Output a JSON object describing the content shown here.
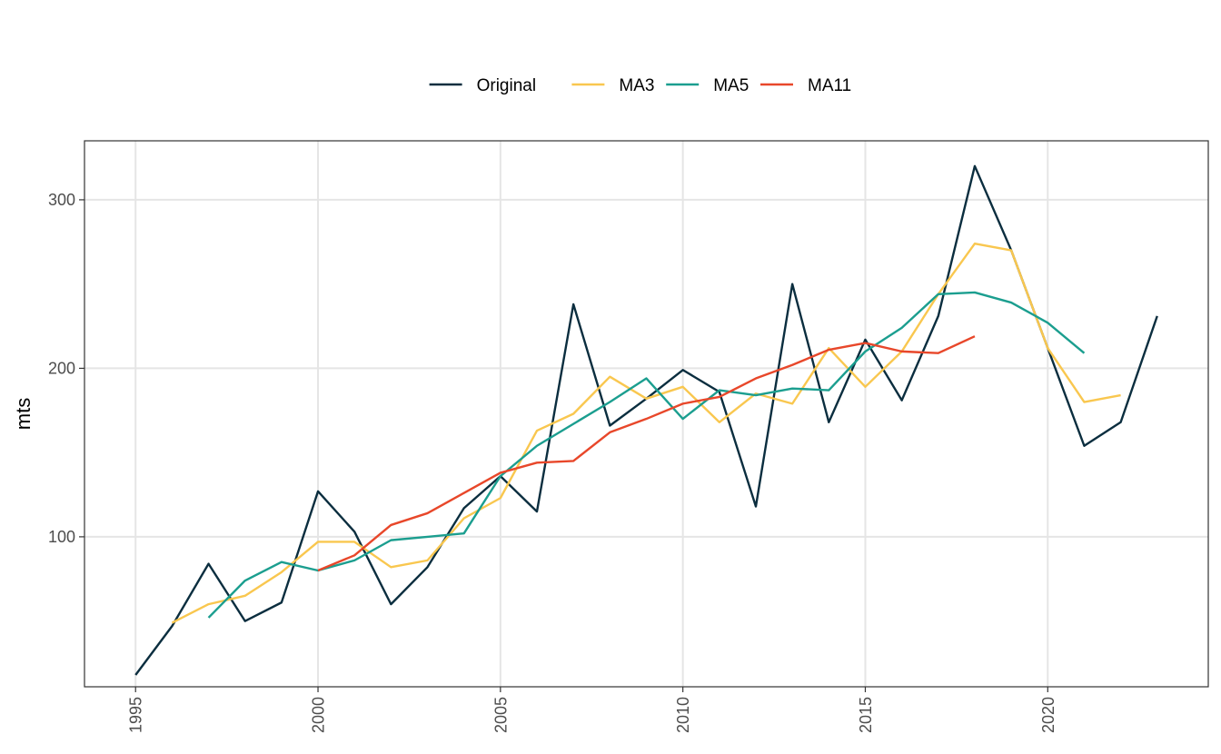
{
  "chart_data": {
    "type": "line",
    "xlabel": "",
    "ylabel": "mts",
    "xlim": [
      1993.6,
      2024.4
    ],
    "ylim": [
      11,
      335
    ],
    "x_ticks": [
      1995,
      2000,
      2005,
      2010,
      2015,
      2020
    ],
    "y_ticks": [
      100,
      200,
      300
    ],
    "grid": true,
    "legend_position": "top",
    "series": [
      {
        "name": "Original",
        "color": "#0b2e3f",
        "points": [
          [
            1995,
            18
          ],
          [
            1996,
            47
          ],
          [
            1997,
            84
          ],
          [
            1998,
            50
          ],
          [
            1999,
            61
          ],
          [
            2000,
            127
          ],
          [
            2001,
            103
          ],
          [
            2002,
            60
          ],
          [
            2003,
            82
          ],
          [
            2004,
            117
          ],
          [
            2005,
            136
          ],
          [
            2006,
            115
          ],
          [
            2007,
            238
          ],
          [
            2008,
            166
          ],
          [
            2009,
            182
          ],
          [
            2010,
            199
          ],
          [
            2011,
            186
          ],
          [
            2012,
            118
          ],
          [
            2013,
            250
          ],
          [
            2014,
            168
          ],
          [
            2015,
            217
          ],
          [
            2016,
            181
          ],
          [
            2017,
            231
          ],
          [
            2018,
            320
          ],
          [
            2019,
            270
          ],
          [
            2020,
            212
          ],
          [
            2021,
            154
          ],
          [
            2022,
            168
          ],
          [
            2023,
            231
          ]
        ]
      },
      {
        "name": "MA3",
        "color": "#f9c74f",
        "points": [
          [
            1996,
            49
          ],
          [
            1997,
            60
          ],
          [
            1998,
            65
          ],
          [
            1999,
            79
          ],
          [
            2000,
            97
          ],
          [
            2001,
            97
          ],
          [
            2002,
            82
          ],
          [
            2003,
            86
          ],
          [
            2004,
            111
          ],
          [
            2005,
            123
          ],
          [
            2006,
            163
          ],
          [
            2007,
            173
          ],
          [
            2008,
            195
          ],
          [
            2009,
            182
          ],
          [
            2010,
            189
          ],
          [
            2011,
            168
          ],
          [
            2012,
            185
          ],
          [
            2013,
            179
          ],
          [
            2014,
            212
          ],
          [
            2015,
            189
          ],
          [
            2016,
            210
          ],
          [
            2017,
            244
          ],
          [
            2018,
            274
          ],
          [
            2019,
            270
          ],
          [
            2020,
            212
          ],
          [
            2021,
            180
          ],
          [
            2022,
            184
          ]
        ]
      },
      {
        "name": "MA5",
        "color": "#1b9e8f",
        "points": [
          [
            1997,
            52
          ],
          [
            1998,
            74
          ],
          [
            1999,
            85
          ],
          [
            2000,
            80
          ],
          [
            2001,
            86
          ],
          [
            2002,
            98
          ],
          [
            2003,
            100
          ],
          [
            2004,
            102
          ],
          [
            2005,
            136
          ],
          [
            2006,
            154
          ],
          [
            2007,
            167
          ],
          [
            2008,
            180
          ],
          [
            2009,
            194
          ],
          [
            2010,
            170
          ],
          [
            2011,
            187
          ],
          [
            2012,
            184
          ],
          [
            2013,
            188
          ],
          [
            2014,
            187
          ],
          [
            2015,
            210
          ],
          [
            2016,
            224
          ],
          [
            2017,
            244
          ],
          [
            2018,
            245
          ],
          [
            2019,
            239
          ],
          [
            2020,
            227
          ],
          [
            2021,
            209
          ]
        ]
      },
      {
        "name": "MA11",
        "color": "#e8472a",
        "points": [
          [
            2000,
            80
          ],
          [
            2001,
            89
          ],
          [
            2002,
            107
          ],
          [
            2003,
            114
          ],
          [
            2004,
            126
          ],
          [
            2005,
            138
          ],
          [
            2006,
            144
          ],
          [
            2007,
            145
          ],
          [
            2008,
            162
          ],
          [
            2009,
            170
          ],
          [
            2010,
            179
          ],
          [
            2011,
            183
          ],
          [
            2012,
            194
          ],
          [
            2013,
            202
          ],
          [
            2014,
            211
          ],
          [
            2015,
            215
          ],
          [
            2016,
            210
          ],
          [
            2017,
            209
          ],
          [
            2018,
            219
          ]
        ]
      }
    ]
  }
}
